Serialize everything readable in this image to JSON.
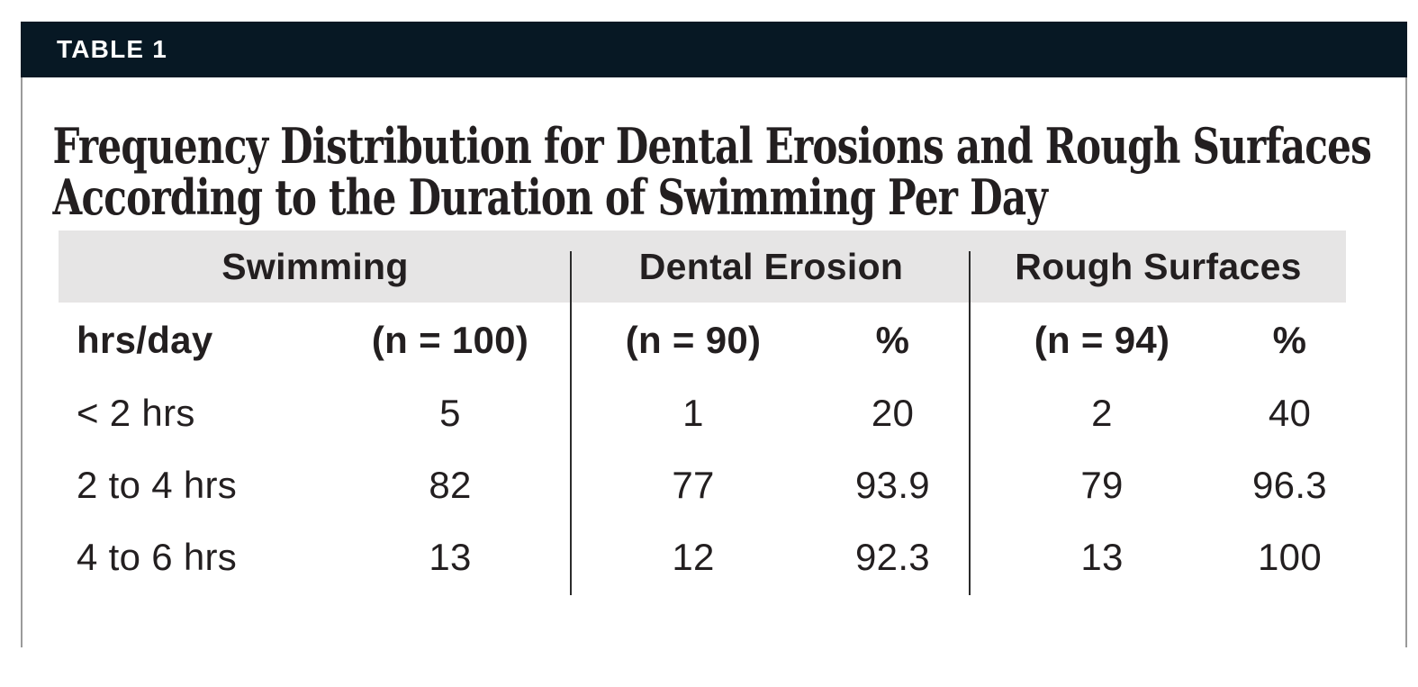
{
  "header_bar": {
    "label": "TABLE 1"
  },
  "title": {
    "line1": "Frequency Distribution for Dental Erosions and Rough Surfaces",
    "line2": "According to the Duration of Swimming Per Day"
  },
  "table": {
    "group_headers": [
      "Swimming",
      "Dental Erosion",
      "Rough Surfaces"
    ],
    "sub_headers": [
      "hrs/day",
      "(n = 100)",
      "(n = 90)",
      "%",
      "(n = 94)",
      "%"
    ],
    "rows": [
      [
        "< 2 hrs",
        "5",
        "1",
        "20",
        "2",
        "40"
      ],
      [
        "2 to 4 hrs",
        "82",
        "77",
        "93.9",
        "79",
        "96.3"
      ],
      [
        "4 to 6 hrs",
        "13",
        "12",
        "92.3",
        "13",
        "100"
      ]
    ]
  },
  "chart_data": {
    "type": "table",
    "title": "Frequency Distribution for Dental Erosions and Rough Surfaces According to the Duration of Swimming Per Day",
    "column_groups": [
      "Swimming",
      "Dental Erosion",
      "Rough Surfaces"
    ],
    "columns": [
      "hrs/day",
      "(n = 100)",
      "(n = 90)",
      "%",
      "(n = 94)",
      "%"
    ],
    "rows": [
      [
        "< 2 hrs",
        5,
        1,
        20,
        2,
        40
      ],
      [
        "2 to 4 hrs",
        82,
        77,
        93.9,
        79,
        96.3
      ],
      [
        "4 to 6 hrs",
        13,
        12,
        92.3,
        13,
        100
      ]
    ]
  },
  "colors": {
    "header_bar": "#071824",
    "bar_label": "#ffffff",
    "band": "#e6e5e5",
    "text": "#231f20",
    "divider": "#2b2b2b",
    "side_border": "#9a9a9a"
  }
}
